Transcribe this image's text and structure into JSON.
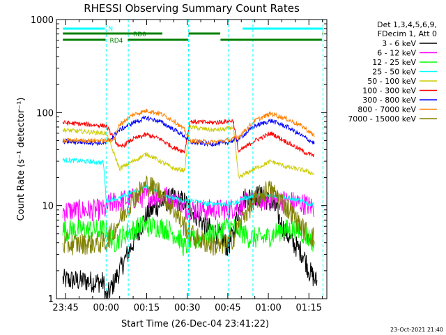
{
  "chart_data": {
    "type": "line",
    "title": "RHESSI Observing Summary Count Rates",
    "xlabel": "Start Time (26-Dec-04 23:41:22)",
    "ylabel": "Count Rate (s⁻¹ detector⁻¹)",
    "yscale": "log",
    "ylim": [
      1,
      1000
    ],
    "xlim_minutes_from_start": [
      -3.37,
      96.63
    ],
    "x_ticks": [
      {
        "label": "23:45",
        "t": 0
      },
      {
        "label": "00:00",
        "t": 15
      },
      {
        "label": "00:15",
        "t": 30
      },
      {
        "label": "00:30",
        "t": 45
      },
      {
        "label": "00:45",
        "t": 60
      },
      {
        "label": "01:00",
        "t": 75
      },
      {
        "label": "01:15",
        "t": 90
      }
    ],
    "y_ticks": [
      {
        "label": "1",
        "v": 1
      },
      {
        "label": "10",
        "v": 10
      },
      {
        "label": "100",
        "v": 100
      },
      {
        "label": "1000",
        "v": 1000
      }
    ],
    "legend_header": [
      "Det 1,3,4,5,6,9,",
      "FDecim 1, Att 0"
    ],
    "legend_position": "right",
    "series": [
      {
        "name": "3 - 6 keV",
        "color": "#000000",
        "keypoints": [
          [
            -1,
            1.6
          ],
          [
            14,
            1.5
          ],
          [
            15,
            1
          ],
          [
            24,
            3.5
          ],
          [
            30,
            8
          ],
          [
            36,
            11
          ],
          [
            40,
            12
          ],
          [
            44,
            11
          ],
          [
            48,
            8
          ],
          [
            52,
            6
          ],
          [
            56,
            5
          ],
          [
            58,
            4.5
          ],
          [
            60,
            3.5
          ],
          [
            62,
            5
          ],
          [
            64,
            9
          ],
          [
            66,
            12
          ],
          [
            70,
            13
          ],
          [
            74,
            12
          ],
          [
            78,
            9
          ],
          [
            80,
            6
          ],
          [
            84,
            4
          ],
          [
            88,
            3
          ],
          [
            90,
            2
          ],
          [
            93,
            1.5
          ]
        ]
      },
      {
        "name": "6 - 12 keV",
        "color": "#ff00ff",
        "keypoints": [
          [
            -1,
            8.8
          ],
          [
            15,
            9
          ],
          [
            16,
            10.5
          ],
          [
            22,
            11.5
          ],
          [
            30,
            12.5
          ],
          [
            38,
            12.5
          ],
          [
            42,
            11
          ],
          [
            44,
            9.2
          ],
          [
            50,
            9
          ],
          [
            60,
            9
          ],
          [
            66,
            10.5
          ],
          [
            74,
            11.5
          ],
          [
            80,
            11.5
          ],
          [
            88,
            10.5
          ],
          [
            92,
            9.5
          ]
        ]
      },
      {
        "name": "12 - 25 keV",
        "color": "#00ff00",
        "keypoints": [
          [
            -1,
            5.5
          ],
          [
            15,
            5.5
          ],
          [
            18,
            4
          ],
          [
            22,
            5
          ],
          [
            28,
            6
          ],
          [
            34,
            6
          ],
          [
            38,
            5.5
          ],
          [
            42,
            4.5
          ],
          [
            44,
            3.5
          ],
          [
            46,
            4
          ],
          [
            54,
            5
          ],
          [
            60,
            6
          ],
          [
            64,
            5.5
          ],
          [
            68,
            4.5
          ],
          [
            74,
            4.5
          ],
          [
            80,
            5.5
          ],
          [
            86,
            5.5
          ],
          [
            90,
            4.5
          ],
          [
            92,
            4
          ]
        ]
      },
      {
        "name": "25 - 50 keV",
        "color": "#00ffff",
        "keypoints": [
          [
            -1,
            31
          ],
          [
            14,
            29
          ],
          [
            15,
            11.5
          ],
          [
            20,
            12
          ],
          [
            25,
            14
          ],
          [
            30,
            16
          ],
          [
            35,
            14
          ],
          [
            40,
            12
          ],
          [
            44,
            11
          ],
          [
            46,
            11.5
          ],
          [
            52,
            10.5
          ],
          [
            58,
            10.5
          ],
          [
            62,
            10.5
          ],
          [
            66,
            12
          ],
          [
            72,
            13
          ],
          [
            76,
            13
          ],
          [
            82,
            12
          ],
          [
            88,
            11
          ],
          [
            92,
            10
          ]
        ]
      },
      {
        "name": "50 - 100 keV",
        "color": "#cccc00",
        "keypoints": [
          [
            -1,
            65
          ],
          [
            15,
            60
          ],
          [
            20,
            25
          ],
          [
            25,
            30
          ],
          [
            30,
            36
          ],
          [
            35,
            30
          ],
          [
            40,
            25
          ],
          [
            44,
            24
          ],
          [
            46,
            70
          ],
          [
            54,
            65
          ],
          [
            59,
            66
          ],
          [
            62,
            70
          ],
          [
            64,
            20
          ],
          [
            70,
            25
          ],
          [
            76,
            30
          ],
          [
            82,
            26
          ],
          [
            88,
            24
          ],
          [
            92,
            22
          ]
        ]
      },
      {
        "name": "100 - 300 keV",
        "color": "#ff0000",
        "keypoints": [
          [
            -1,
            78
          ],
          [
            15,
            72
          ],
          [
            20,
            42
          ],
          [
            25,
            52
          ],
          [
            30,
            58
          ],
          [
            35,
            52
          ],
          [
            40,
            42
          ],
          [
            44,
            38
          ],
          [
            46,
            80
          ],
          [
            54,
            78
          ],
          [
            59,
            80
          ],
          [
            62,
            82
          ],
          [
            64,
            38
          ],
          [
            70,
            50
          ],
          [
            76,
            60
          ],
          [
            82,
            48
          ],
          [
            88,
            38
          ],
          [
            92,
            34
          ]
        ]
      },
      {
        "name": "300 - 800 keV",
        "color": "#0000ff",
        "keypoints": [
          [
            -1,
            49
          ],
          [
            15,
            47
          ],
          [
            20,
            65
          ],
          [
            25,
            78
          ],
          [
            30,
            88
          ],
          [
            35,
            80
          ],
          [
            40,
            66
          ],
          [
            44,
            56
          ],
          [
            46,
            48
          ],
          [
            54,
            46
          ],
          [
            59,
            47
          ],
          [
            62,
            50
          ],
          [
            64,
            52
          ],
          [
            70,
            72
          ],
          [
            76,
            82
          ],
          [
            82,
            70
          ],
          [
            88,
            55
          ],
          [
            92,
            47
          ]
        ]
      },
      {
        "name": "800 - 7000 keV",
        "color": "#ff8000",
        "keypoints": [
          [
            -1,
            50
          ],
          [
            15,
            50
          ],
          [
            18,
            52
          ],
          [
            20,
            75
          ],
          [
            25,
            95
          ],
          [
            30,
            105
          ],
          [
            35,
            98
          ],
          [
            40,
            82
          ],
          [
            44,
            65
          ],
          [
            46,
            50
          ],
          [
            54,
            48
          ],
          [
            59,
            50
          ],
          [
            62,
            52
          ],
          [
            64,
            55
          ],
          [
            70,
            82
          ],
          [
            76,
            98
          ],
          [
            82,
            85
          ],
          [
            88,
            70
          ],
          [
            92,
            56
          ]
        ]
      },
      {
        "name": "7000 - 15000 keV",
        "color": "#808000",
        "keypoints": [
          [
            -1,
            3.8
          ],
          [
            15,
            4
          ],
          [
            20,
            7
          ],
          [
            25,
            12
          ],
          [
            30,
            17
          ],
          [
            35,
            14
          ],
          [
            40,
            9
          ],
          [
            44,
            6
          ],
          [
            48,
            4.5
          ],
          [
            54,
            3.8
          ],
          [
            58,
            3.5
          ],
          [
            62,
            4.5
          ],
          [
            66,
            8
          ],
          [
            72,
            13
          ],
          [
            75,
            15
          ],
          [
            78,
            13
          ],
          [
            84,
            8
          ],
          [
            88,
            5.5
          ],
          [
            92,
            4.5
          ]
        ]
      }
    ],
    "attenuator_boundaries_t": [
      15,
      23.2,
      45.5,
      60.3,
      69.3,
      95.2
    ],
    "annotations": [
      {
        "label": "N",
        "color": "#00ffff",
        "segments": [
          [
            -1,
            14.5
          ],
          [
            65.5,
            95.1
          ]
        ],
        "level": "top"
      },
      {
        "label": "RD0",
        "color": "#008000",
        "segments": [
          [
            -1,
            35.8
          ],
          [
            45.5,
            57.2
          ],
          [
            95,
            95.3
          ]
        ],
        "level": "upper"
      },
      {
        "label": "RD4",
        "color": "#008000",
        "segments": [
          [
            -1,
            14.8
          ],
          [
            23,
            45.3
          ],
          [
            57.3,
            94.8
          ]
        ],
        "level": "lower"
      }
    ],
    "grid": false
  },
  "footer": {
    "timestamp": "23-Oct-2021 21:40"
  }
}
